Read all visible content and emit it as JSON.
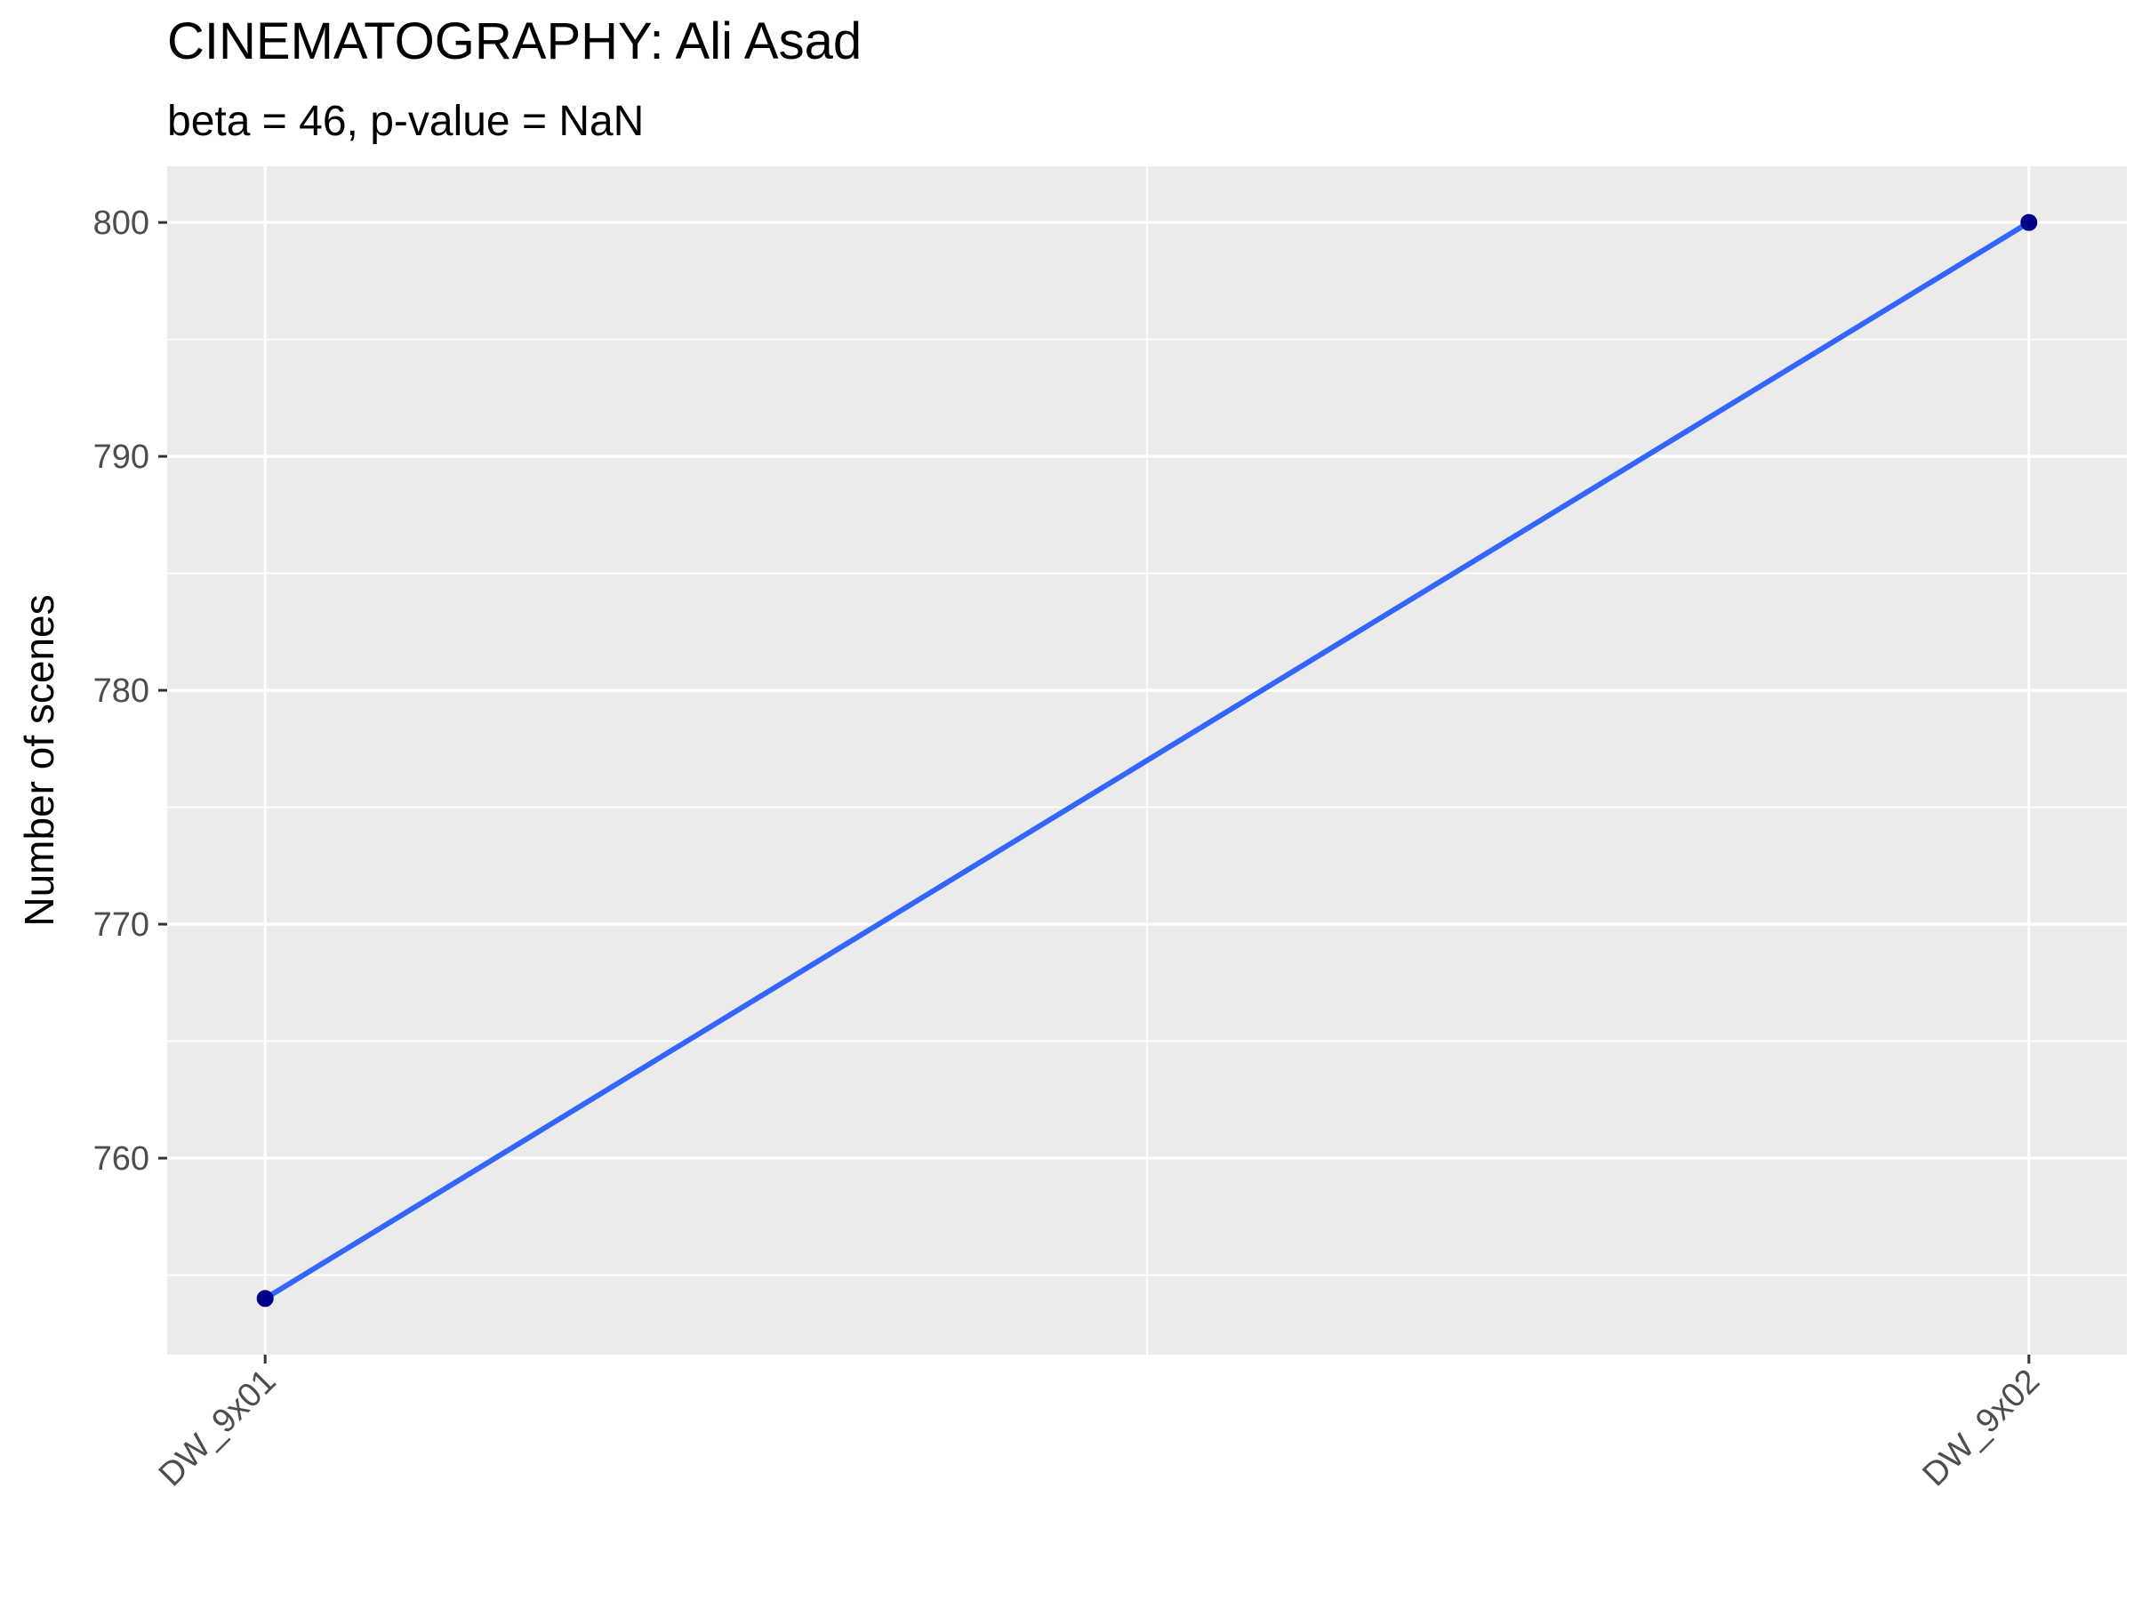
{
  "chart_data": {
    "type": "line",
    "title": "CINEMATOGRAPHY: Ali Asad",
    "subtitle": "beta = 46, p-value = NaN",
    "xlabel": "",
    "ylabel": "Number of scenes",
    "categories": [
      "DW_9x01",
      "DW_9x02"
    ],
    "series": [
      {
        "values": [
          754,
          800
        ],
        "line_color": "#3366ff",
        "point_color": "#00008b"
      }
    ],
    "ylim": [
      751.6,
      802.4
    ],
    "yticks": [
      760,
      770,
      780,
      790,
      800
    ],
    "ytick_labels": [
      "760",
      "770",
      "780",
      "790",
      "800"
    ],
    "grid": true,
    "legend": "none",
    "panel_color": "#ebebeb",
    "grid_color": "#ffffff"
  }
}
